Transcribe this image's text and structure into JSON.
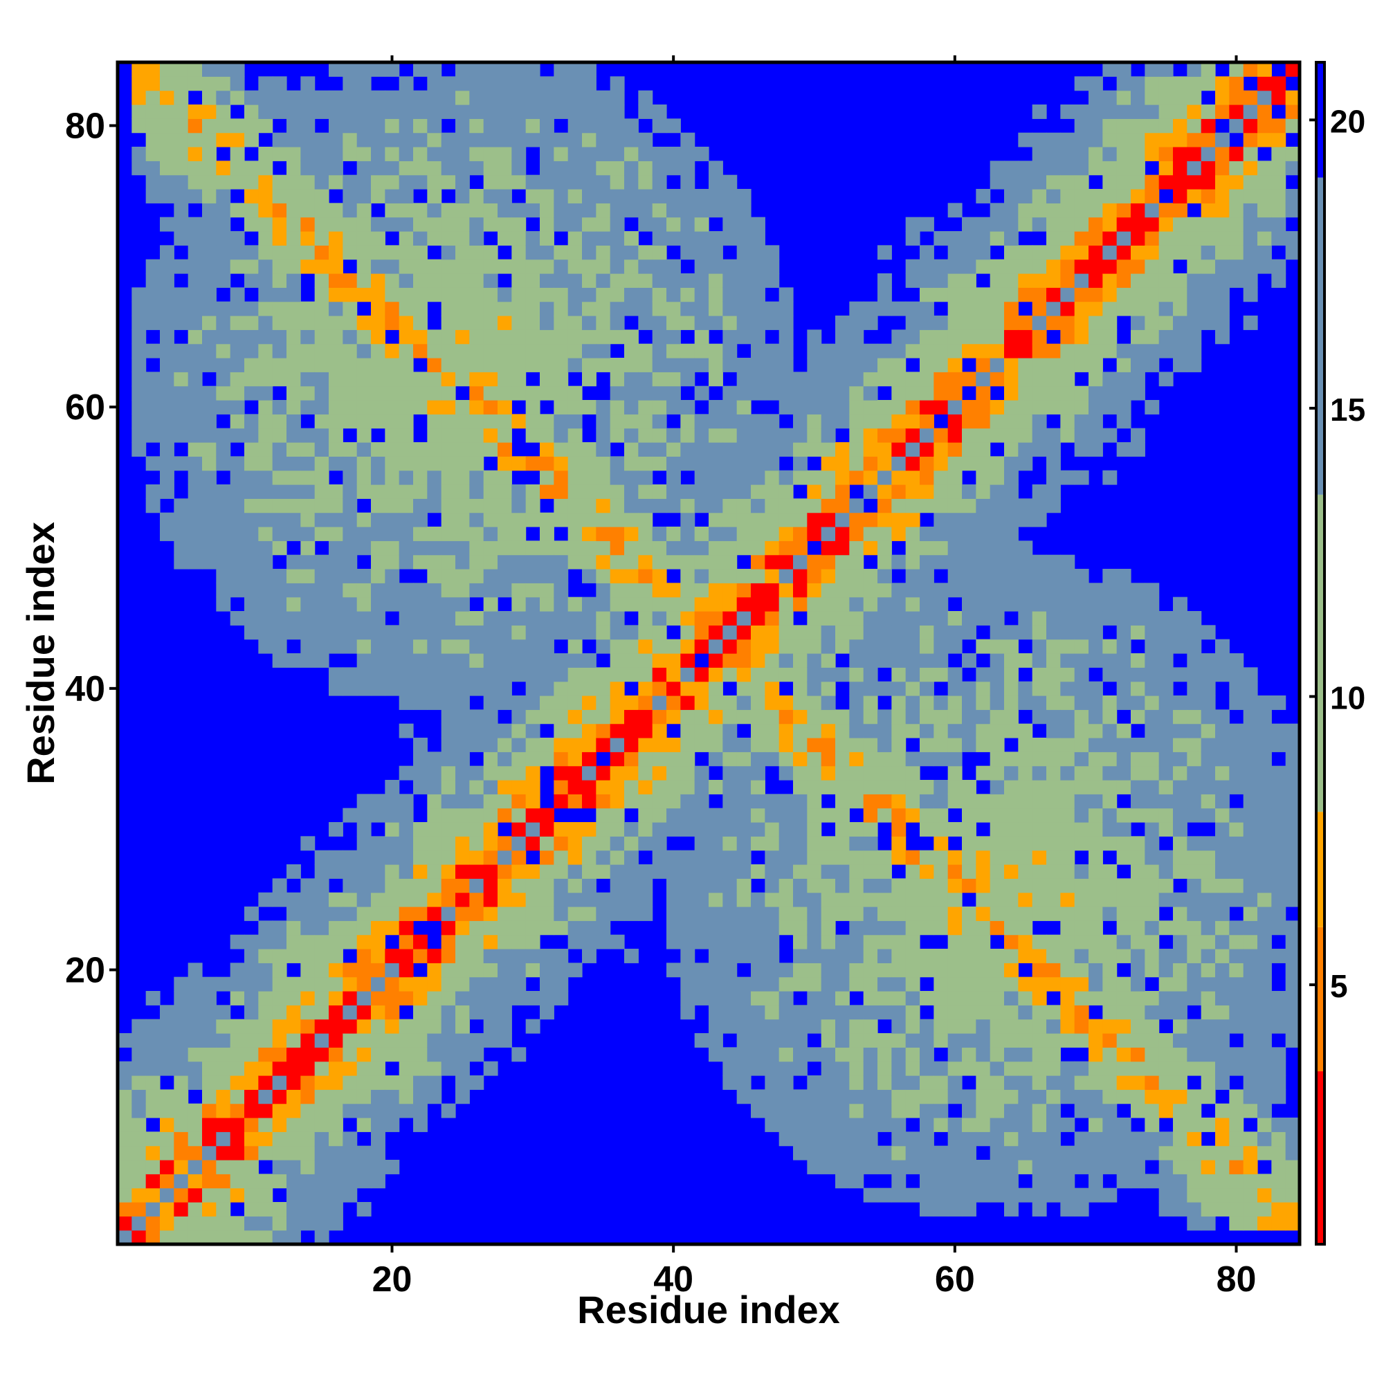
{
  "colors": {
    "background": "#0000ff",
    "very_close": "#ff0000",
    "close": "#ff8000",
    "near": "#ffa500",
    "mid": "#9cbf8a",
    "far": "#6a90b4",
    "frame": "#000000"
  },
  "chart_data": {
    "type": "heatmap",
    "title": "",
    "xlabel": "Residue index",
    "ylabel": "Residue index",
    "n_residues": 84,
    "xlim": [
      1,
      84
    ],
    "ylim": [
      1,
      84
    ],
    "x_ticks": [
      "20",
      "40",
      "60",
      "80"
    ],
    "y_ticks": [
      "20",
      "40",
      "60",
      "80"
    ],
    "x_tick_values": [
      20,
      40,
      60,
      80
    ],
    "y_tick_values": [
      20,
      40,
      60,
      80
    ],
    "colorbar": {
      "ticks": [
        "5",
        "10",
        "15",
        "20"
      ],
      "tick_values": [
        5,
        10,
        15,
        20
      ],
      "range": [
        0.5,
        21
      ],
      "segments": [
        {
          "from": 0.5,
          "to": 3.5,
          "color": "#ff0000"
        },
        {
          "from": 3.5,
          "to": 6.0,
          "color": "#ff8000"
        },
        {
          "from": 6.0,
          "to": 8.0,
          "color": "#ffa500"
        },
        {
          "from": 8.0,
          "to": 13.5,
          "color": "#9cbf8a"
        },
        {
          "from": 13.5,
          "to": 19.0,
          "color": "#6a90b4"
        },
        {
          "from": 19.0,
          "to": 21.0,
          "color": "#0000ff"
        }
      ]
    },
    "cutoff": 19.5
  }
}
